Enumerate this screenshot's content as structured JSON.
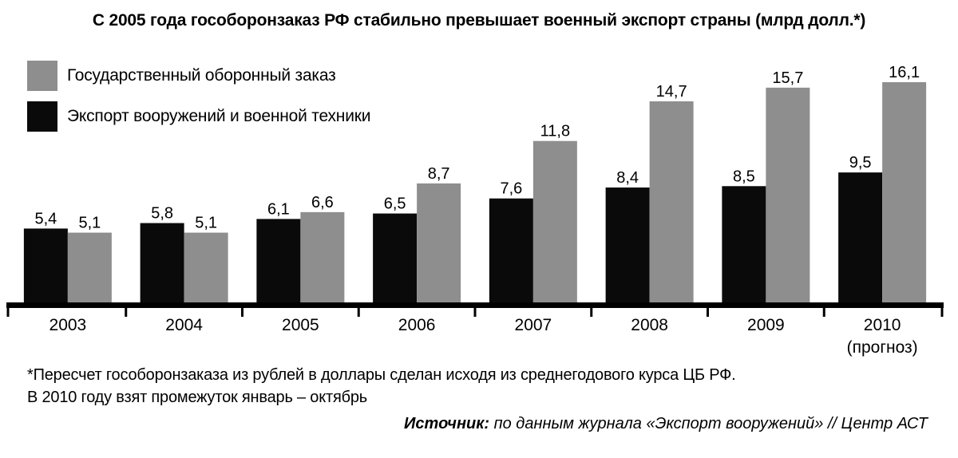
{
  "chart_data": {
    "type": "bar",
    "title": "С 2005 года гособоронзаказ РФ стабильно превышает военный экспорт страны (млрд долл.*)",
    "categories": [
      "2003",
      "2004",
      "2005",
      "2006",
      "2007",
      "2008",
      "2009",
      "2010"
    ],
    "category_notes": [
      "",
      "",
      "",
      "",
      "",
      "",
      "",
      "(прогноз)"
    ],
    "series": [
      {
        "name": "Экспорт вооружений и военной техники",
        "values": [
          5.4,
          5.8,
          6.1,
          6.5,
          7.6,
          8.4,
          8.5,
          9.5
        ],
        "labels": [
          "5,4",
          "5,8",
          "6,1",
          "6,5",
          "7,6",
          "8,4",
          "8,5",
          "9,5"
        ],
        "color": "#0a0a0a"
      },
      {
        "name": "Государственный оборонный заказ",
        "values": [
          5.1,
          5.1,
          6.6,
          8.7,
          11.8,
          14.7,
          15.7,
          16.1
        ],
        "labels": [
          "5,1",
          "5,1",
          "6,6",
          "8,7",
          "11,8",
          "14,7",
          "15,7",
          "16,1"
        ],
        "color": "#8e8e8e"
      }
    ],
    "legend_order": [
      "Государственный оборонный заказ",
      "Экспорт вооружений и военной техники"
    ],
    "legend_position": "top-left",
    "ylim": [
      0,
      16.1
    ],
    "grid": false
  },
  "legend": {
    "item1": "Государственный оборонный заказ",
    "item2": "Экспорт вооружений и военной техники"
  },
  "footnote": {
    "line1": "*Пересчет гособоронзаказа из рублей в доллары сделан исходя из среднегодового курса ЦБ РФ.",
    "line2": "В 2010 году взят промежуток январь – октябрь"
  },
  "source": {
    "label": "Источник:",
    "text": " по данным журнала «Экспорт вооружений» // Центр АСТ"
  }
}
